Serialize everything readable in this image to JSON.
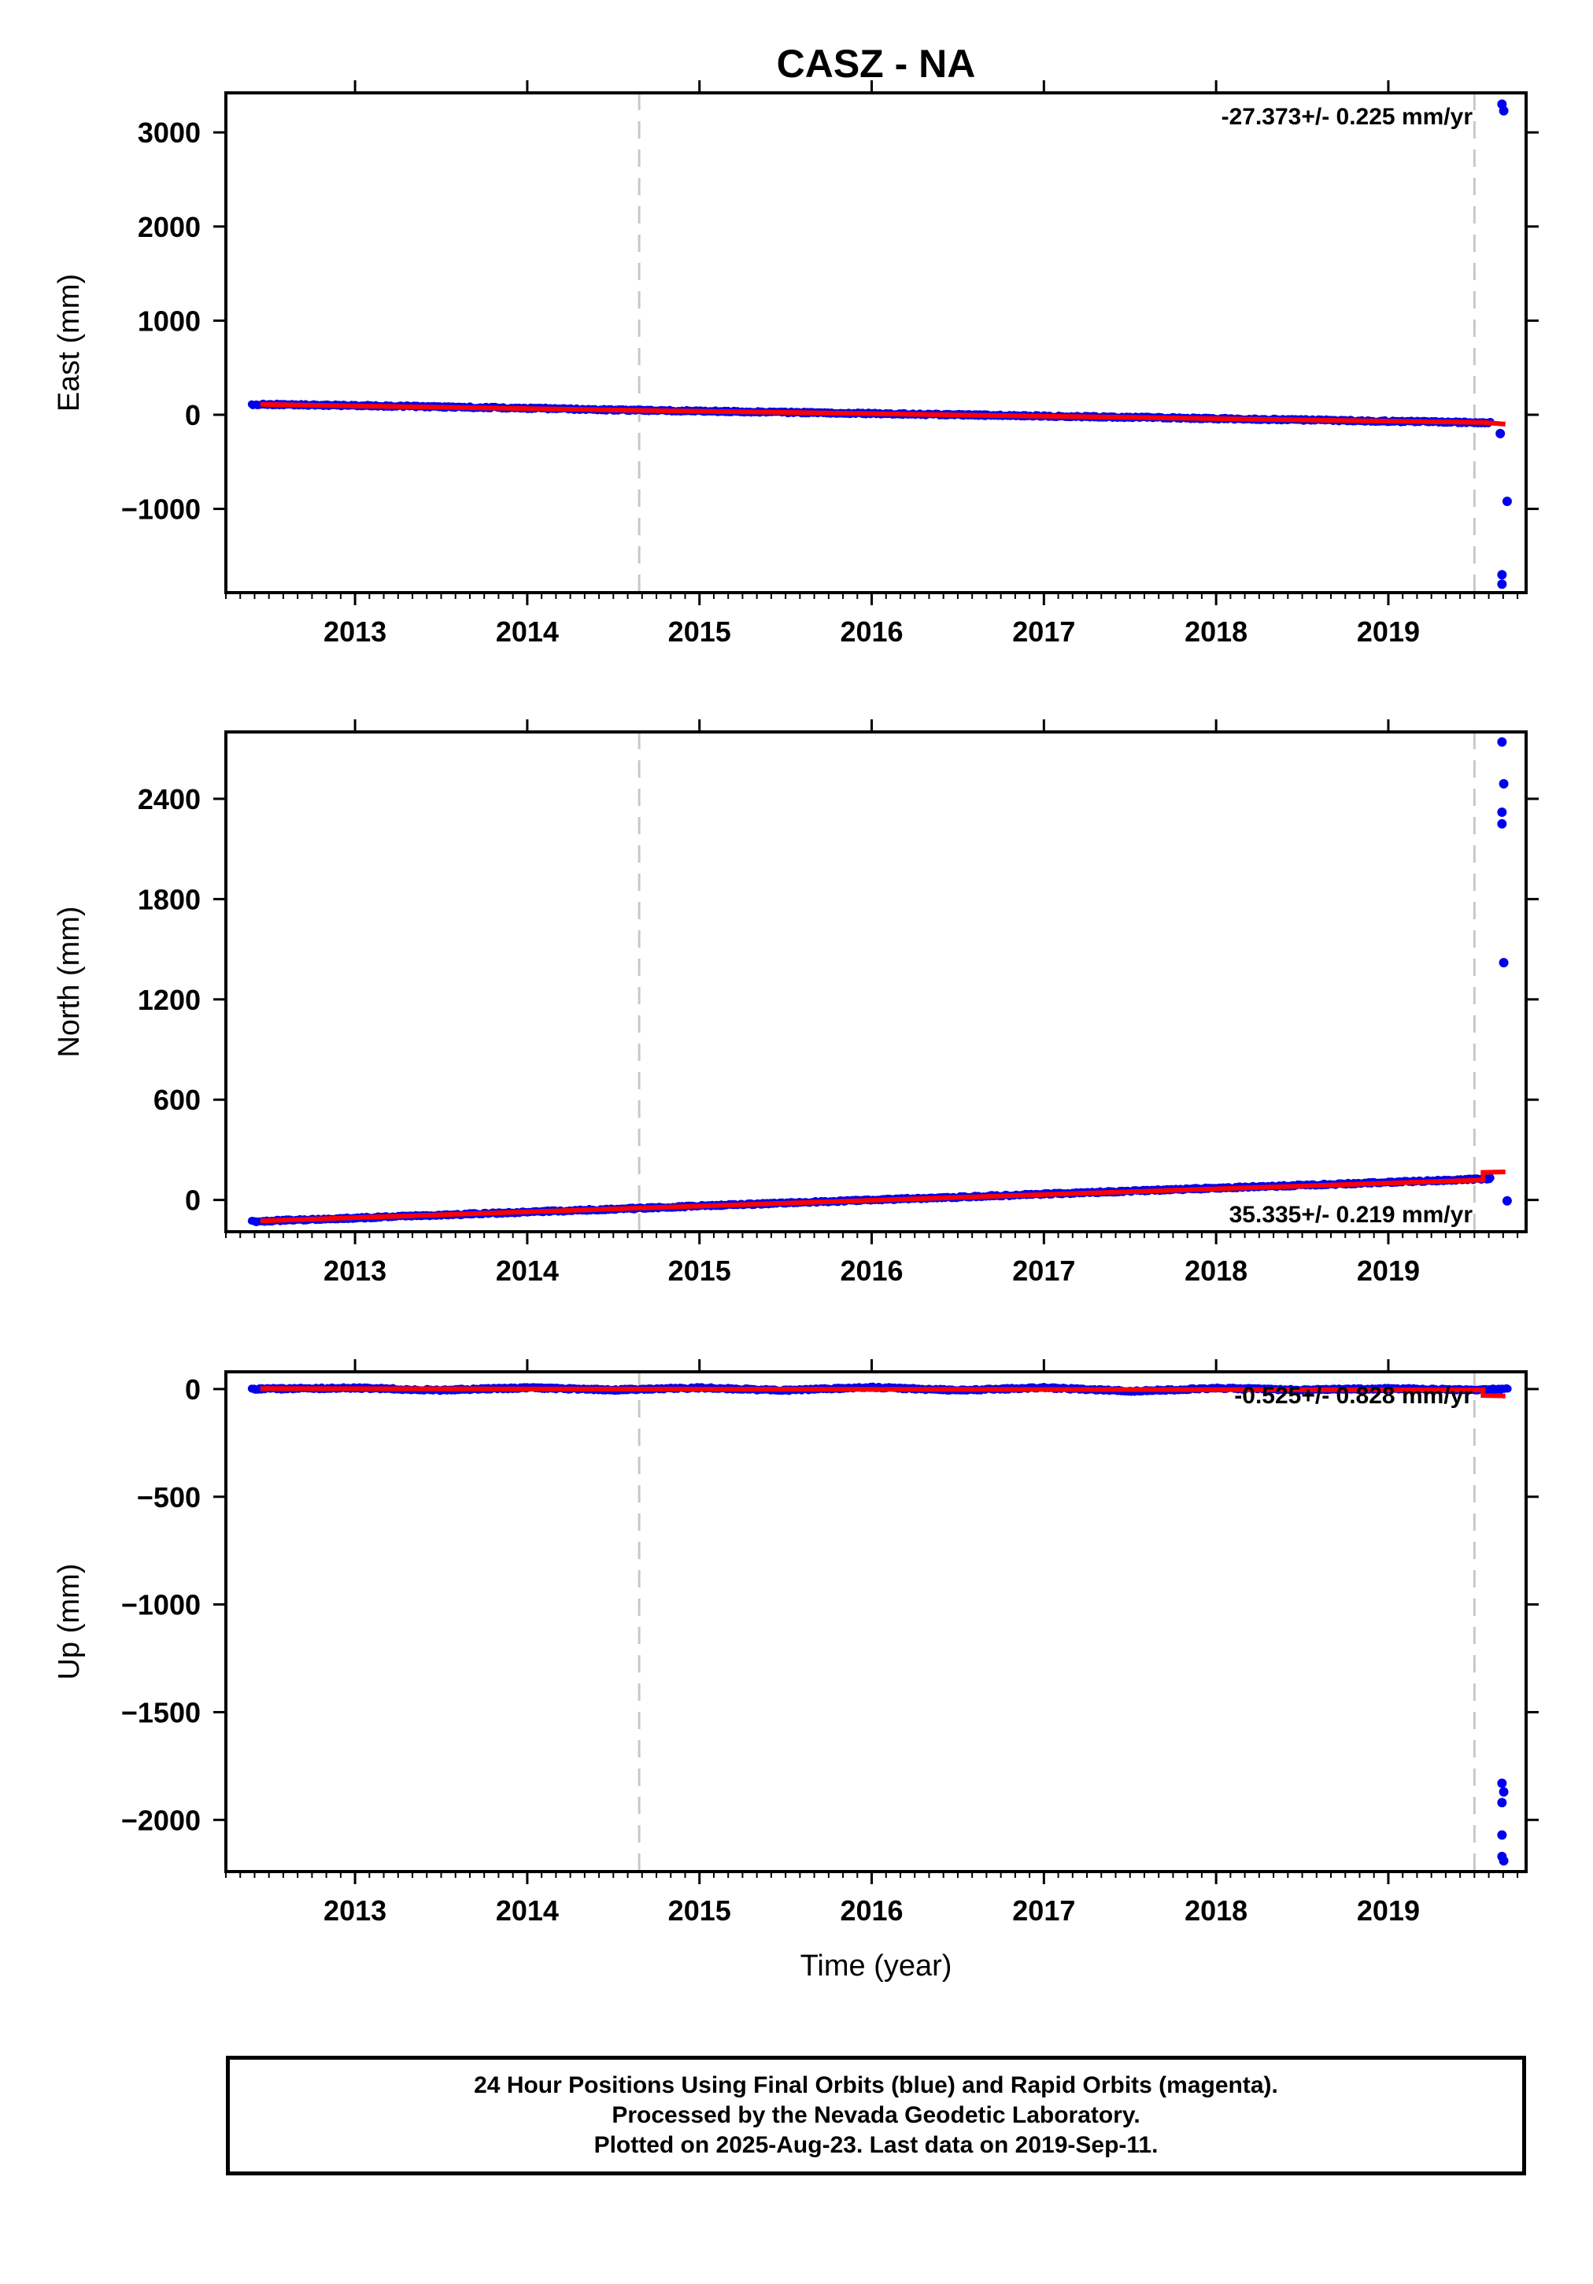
{
  "figure": {
    "title": "CASZ - NA",
    "xlabel": "Time (year)",
    "footer": [
      "24 Hour Positions Using Final Orbits (blue) and Rapid Orbits (magenta).",
      "Processed by the Nevada Geodetic Laboratory.",
      "Plotted on 2025-Aug-23. Last data on 2019-Sep-11."
    ],
    "colors": {
      "final_orbits": "#0000ee",
      "fit": "#ff0000",
      "event_line": "#c8c8c8"
    }
  },
  "chart_data": [
    {
      "type": "scatter",
      "component": "East",
      "ylabel": "East (mm)",
      "rate_label": "-27.373+/- 0.225 mm/yr",
      "rate_position": "top-right",
      "xlim": [
        2012.25,
        2019.8
      ],
      "ylim": [
        -1890,
        3420
      ],
      "x_ticks": [
        2013,
        2014,
        2015,
        2016,
        2017,
        2018,
        2019
      ],
      "y_ticks": [
        -1000,
        0,
        1000,
        2000,
        3000
      ],
      "event_lines_x": [
        2014.65,
        2019.5
      ],
      "series": [
        {
          "type": "scatter",
          "trend_points": [
            [
              2012.4,
              105
            ],
            [
              2012.5,
              110
            ],
            [
              2013.0,
              98
            ],
            [
              2013.5,
              84
            ],
            [
              2014.0,
              70
            ],
            [
              2014.4,
              55
            ],
            [
              2014.7,
              47
            ],
            [
              2015.0,
              40
            ],
            [
              2015.5,
              26
            ],
            [
              2016.0,
              13
            ],
            [
              2016.5,
              0
            ],
            [
              2017.0,
              -14
            ],
            [
              2017.5,
              -27
            ],
            [
              2018.0,
              -41
            ],
            [
              2018.5,
              -55
            ],
            [
              2019.0,
              -69
            ],
            [
              2019.5,
              -82
            ],
            [
              2019.6,
              -85
            ]
          ],
          "outliers": [
            [
              2019.66,
              3300
            ],
            [
              2019.67,
              3230
            ],
            [
              2019.65,
              -200
            ],
            [
              2019.69,
              -920
            ],
            [
              2019.66,
              -1700
            ],
            [
              2019.66,
              -1800
            ]
          ]
        },
        {
          "type": "line",
          "points": [
            [
              2012.45,
              110
            ],
            [
              2014.6,
              48
            ],
            [
              2019.55,
              -82
            ],
            [
              2019.68,
              -100
            ]
          ]
        }
      ]
    },
    {
      "type": "scatter",
      "component": "North",
      "ylabel": "North (mm)",
      "rate_label": "35.335+/- 0.219 mm/yr",
      "rate_position": "bottom-right",
      "xlim": [
        2012.25,
        2019.8
      ],
      "ylim": [
        -190,
        2800
      ],
      "x_ticks": [
        2013,
        2014,
        2015,
        2016,
        2017,
        2018,
        2019
      ],
      "y_ticks": [
        0,
        600,
        1200,
        1800,
        2400
      ],
      "event_lines_x": [
        2014.65,
        2019.5
      ],
      "series": [
        {
          "type": "scatter",
          "trend_points": [
            [
              2012.4,
              -130
            ],
            [
              2012.5,
              -125
            ],
            [
              2013.0,
              -108
            ],
            [
              2013.5,
              -90
            ],
            [
              2014.0,
              -72
            ],
            [
              2014.4,
              -58
            ],
            [
              2014.7,
              -48
            ],
            [
              2015.0,
              -36
            ],
            [
              2015.5,
              -18
            ],
            [
              2016.0,
              0
            ],
            [
              2016.5,
              17
            ],
            [
              2017.0,
              35
            ],
            [
              2017.5,
              53
            ],
            [
              2018.0,
              71
            ],
            [
              2018.5,
              88
            ],
            [
              2019.0,
              106
            ],
            [
              2019.5,
              124
            ],
            [
              2019.6,
              128
            ]
          ],
          "outliers": [
            [
              2019.66,
              2740
            ],
            [
              2019.67,
              2490
            ],
            [
              2019.66,
              2320
            ],
            [
              2019.66,
              2250
            ],
            [
              2019.67,
              1420
            ],
            [
              2019.69,
              -5
            ]
          ]
        },
        {
          "type": "line",
          "points": [
            [
              2012.45,
              -125
            ],
            [
              2014.6,
              -50
            ],
            [
              2019.55,
              120
            ],
            [
              2019.55,
              165
            ],
            [
              2019.68,
              168
            ]
          ]
        }
      ]
    },
    {
      "type": "scatter",
      "component": "Up",
      "ylabel": "Up (mm)",
      "rate_label": "-0.525+/- 0.828 mm/yr",
      "rate_position": "top-right",
      "xlim": [
        2012.25,
        2019.8
      ],
      "ylim": [
        -2240,
        80
      ],
      "x_ticks": [
        2013,
        2014,
        2015,
        2016,
        2017,
        2018,
        2019
      ],
      "y_ticks": [
        -2000,
        -1500,
        -1000,
        -500,
        0
      ],
      "event_lines_x": [
        2014.65,
        2019.5
      ],
      "series": [
        {
          "type": "scatter",
          "trend_points": [
            [
              2012.4,
              0
            ],
            [
              2013.0,
              5
            ],
            [
              2013.5,
              -5
            ],
            [
              2014.0,
              6
            ],
            [
              2014.5,
              -4
            ],
            [
              2015.0,
              6
            ],
            [
              2015.5,
              -6
            ],
            [
              2016.0,
              8
            ],
            [
              2016.5,
              -6
            ],
            [
              2017.0,
              6
            ],
            [
              2017.5,
              -10
            ],
            [
              2018.0,
              4
            ],
            [
              2018.5,
              -4
            ],
            [
              2019.0,
              2
            ],
            [
              2019.5,
              -4
            ],
            [
              2019.7,
              2
            ]
          ],
          "outliers": [
            [
              2019.66,
              -1830
            ],
            [
              2019.67,
              -1870
            ],
            [
              2019.66,
              -1920
            ],
            [
              2019.66,
              -2070
            ],
            [
              2019.66,
              -2170
            ],
            [
              2019.67,
              -2190
            ]
          ]
        },
        {
          "type": "line",
          "points": [
            [
              2012.45,
              2
            ],
            [
              2014.6,
              0
            ],
            [
              2019.55,
              -4
            ],
            [
              2019.55,
              -30
            ],
            [
              2019.68,
              -32
            ]
          ]
        }
      ]
    }
  ]
}
